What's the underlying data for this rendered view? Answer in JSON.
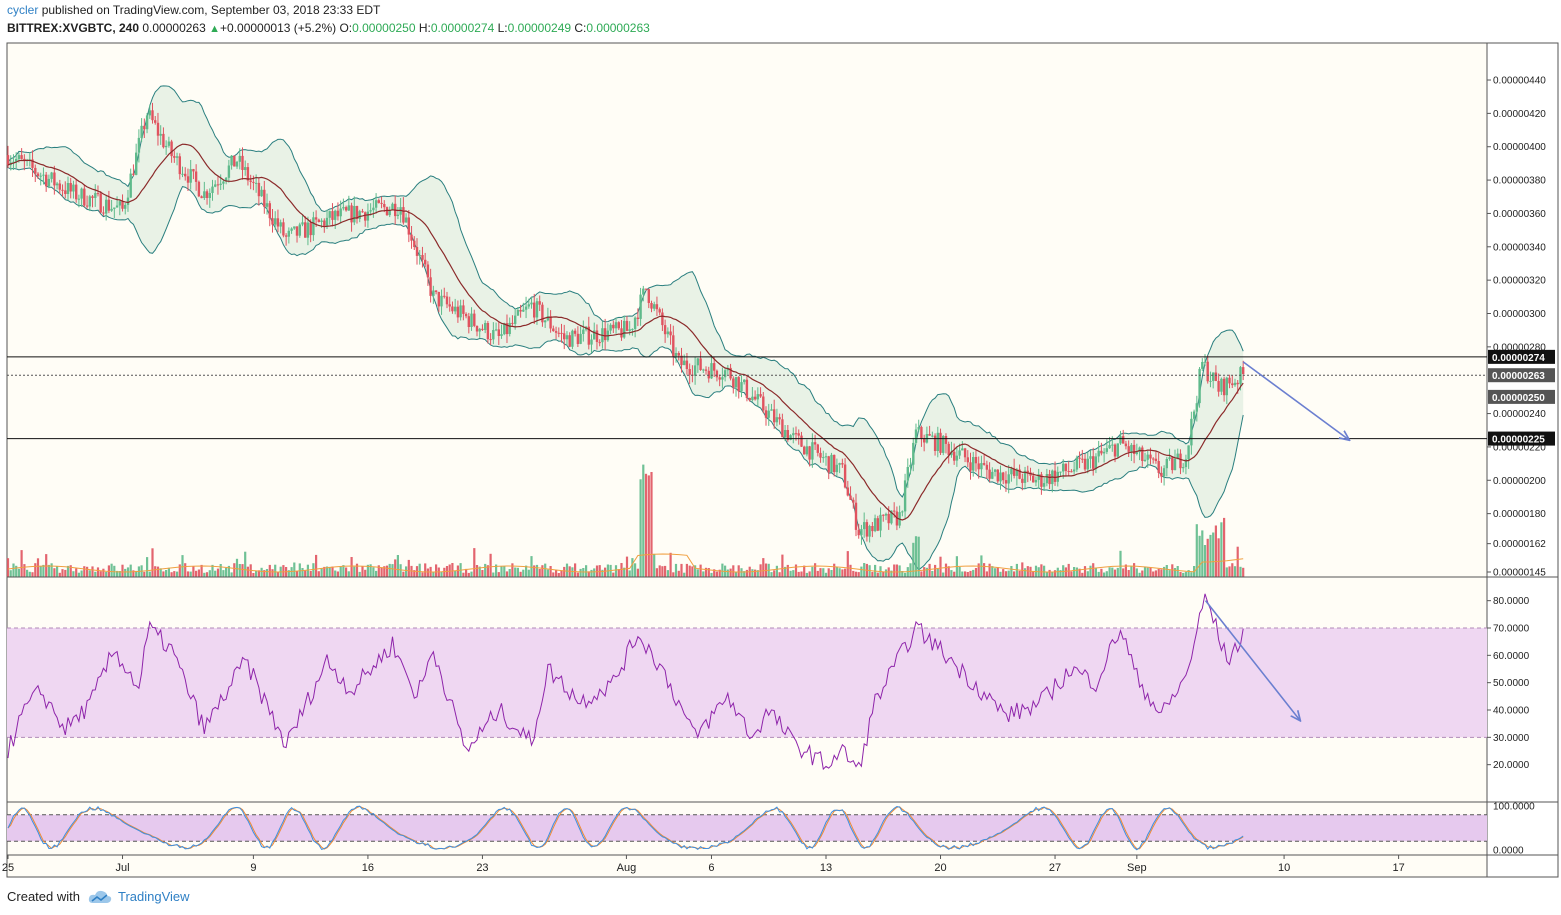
{
  "header": {
    "user": "cycler",
    "published_text": "published on TradingView.com, September 03, 2018 23:33 EDT",
    "symbol": "BITTREX:XVGBTC, 240",
    "last": "0.00000263",
    "change": "+0.00000013 (+5.2%)",
    "o_label": "O:",
    "o_val": "0.00000250",
    "h_label": "H:",
    "h_val": "0.00000274",
    "l_label": "L:",
    "l_val": "0.00000249",
    "c_label": "C:",
    "c_val": "0.00000263"
  },
  "footer": {
    "created": "Created with",
    "brand": "TradingView"
  },
  "colors": {
    "up": "#5fba8b",
    "down": "#e0535f",
    "bb_line": "#2a7f7f",
    "bb_fill": "#e9f2e6",
    "basis": "#8b2a2a",
    "rsi_line": "#8e24aa",
    "rsi_band": "#efd7f2",
    "stoch_k": "#3d8fe0",
    "stoch_d": "#ef8a35",
    "arrow": "#6b7fd0",
    "bg": "#fffdf6"
  },
  "chart_data": [
    {
      "type": "candlestick",
      "pair": "BITTREX:XVGBTC",
      "interval": "240",
      "indicators": [
        "Bollinger Bands",
        "Volume"
      ],
      "y_ticks": [
        "0.00000440",
        "0.00000420",
        "0.00000400",
        "0.00000380",
        "0.00000360",
        "0.00000340",
        "0.00000320",
        "0.00000300",
        "0.00000280",
        "0.00000240",
        "0.00000220",
        "0.00000200",
        "0.00000180",
        "0.00000162",
        "0.00000145"
      ],
      "ylim": [
        1.45e-06,
        4.55e-06
      ],
      "x_ticks": [
        "25",
        "Jul",
        "9",
        "16",
        "23",
        "Aug",
        "6",
        "13",
        "20",
        "27",
        "Sep",
        "10",
        "17"
      ],
      "price_path": [
        {
          "d": 0,
          "p": 3.95e-06
        },
        {
          "d": 4,
          "p": 3.72e-06
        },
        {
          "d": 7,
          "p": 3.62e-06
        },
        {
          "d": 8.5,
          "p": 4.2e-06
        },
        {
          "d": 10,
          "p": 3.95e-06
        },
        {
          "d": 12,
          "p": 3.72e-06
        },
        {
          "d": 14,
          "p": 3.92e-06
        },
        {
          "d": 17,
          "p": 3.45e-06
        },
        {
          "d": 20,
          "p": 3.58e-06
        },
        {
          "d": 24,
          "p": 3.65e-06
        },
        {
          "d": 26,
          "p": 3.1e-06
        },
        {
          "d": 30,
          "p": 2.85e-06
        },
        {
          "d": 32,
          "p": 3.05e-06
        },
        {
          "d": 34,
          "p": 2.85e-06
        },
        {
          "d": 38,
          "p": 2.9e-06
        },
        {
          "d": 39,
          "p": 3.15e-06
        },
        {
          "d": 41,
          "p": 2.7e-06
        },
        {
          "d": 44,
          "p": 2.65e-06
        },
        {
          "d": 48,
          "p": 2.25e-06
        },
        {
          "d": 51,
          "p": 2.05e-06
        },
        {
          "d": 52,
          "p": 1.7e-06
        },
        {
          "d": 54.5,
          "p": 1.78e-06
        },
        {
          "d": 55.5,
          "p": 2.28e-06
        },
        {
          "d": 57,
          "p": 2.22e-06
        },
        {
          "d": 60,
          "p": 2.05e-06
        },
        {
          "d": 63,
          "p": 2e-06
        },
        {
          "d": 66,
          "p": 2.1e-06
        },
        {
          "d": 68,
          "p": 2.22e-06
        },
        {
          "d": 70.5,
          "p": 2.05e-06
        },
        {
          "d": 72,
          "p": 2.15e-06
        },
        {
          "d": 73,
          "p": 2.7e-06
        },
        {
          "d": 74,
          "p": 2.55e-06
        },
        {
          "d": 75.5,
          "p": 2.63e-06
        }
      ],
      "horizontal_lines": [
        "0.00000274",
        "0.00000225"
      ],
      "last_price_line": "0.00000263",
      "price_labels": [
        "0.00000274",
        "0.00000263",
        "0.00000250",
        "0.00000225"
      ],
      "trend_arrow": {
        "from": {
          "d": 75.5,
          "p": 2.71e-06
        },
        "to": {
          "d": 82,
          "p": 2.24e-06
        }
      }
    },
    {
      "type": "line",
      "indicator": "RSI",
      "y_ticks": [
        "80.0000",
        "70.0000",
        "60.0000",
        "50.0000",
        "40.0000",
        "30.0000",
        "20.0000"
      ],
      "ylim": [
        10,
        85
      ],
      "overbought": 70,
      "oversold": 30,
      "path": [
        {
          "d": 0,
          "v": 25
        },
        {
          "d": 1,
          "v": 40
        },
        {
          "d": 2,
          "v": 47
        },
        {
          "d": 3.5,
          "v": 33
        },
        {
          "d": 5,
          "v": 42
        },
        {
          "d": 6.5,
          "v": 62
        },
        {
          "d": 8,
          "v": 48
        },
        {
          "d": 8.6,
          "v": 70
        },
        {
          "d": 10,
          "v": 62
        },
        {
          "d": 12,
          "v": 33
        },
        {
          "d": 14.5,
          "v": 58
        },
        {
          "d": 17,
          "v": 27
        },
        {
          "d": 19.5,
          "v": 58
        },
        {
          "d": 21,
          "v": 47
        },
        {
          "d": 23.5,
          "v": 64
        },
        {
          "d": 25,
          "v": 45
        },
        {
          "d": 26,
          "v": 62
        },
        {
          "d": 28,
          "v": 25
        },
        {
          "d": 30,
          "v": 40
        },
        {
          "d": 32,
          "v": 28
        },
        {
          "d": 33,
          "v": 55
        },
        {
          "d": 35,
          "v": 43
        },
        {
          "d": 37,
          "v": 50
        },
        {
          "d": 38.5,
          "v": 68
        },
        {
          "d": 40,
          "v": 55
        },
        {
          "d": 42,
          "v": 30
        },
        {
          "d": 44,
          "v": 45
        },
        {
          "d": 45.5,
          "v": 30
        },
        {
          "d": 46.5,
          "v": 40
        },
        {
          "d": 48,
          "v": 28
        },
        {
          "d": 50,
          "v": 20
        },
        {
          "d": 51,
          "v": 25
        },
        {
          "d": 52,
          "v": 18
        },
        {
          "d": 53,
          "v": 43
        },
        {
          "d": 55.5,
          "v": 70
        },
        {
          "d": 57,
          "v": 62
        },
        {
          "d": 59,
          "v": 50
        },
        {
          "d": 61,
          "v": 38
        },
        {
          "d": 63,
          "v": 42
        },
        {
          "d": 65,
          "v": 55
        },
        {
          "d": 66.5,
          "v": 50
        },
        {
          "d": 68,
          "v": 70
        },
        {
          "d": 69,
          "v": 52
        },
        {
          "d": 70.5,
          "v": 38
        },
        {
          "d": 72,
          "v": 52
        },
        {
          "d": 73.2,
          "v": 82
        },
        {
          "d": 74.5,
          "v": 58
        },
        {
          "d": 75.5,
          "v": 67
        }
      ],
      "trend_arrow": {
        "from": {
          "d": 73.2,
          "v": 80
        },
        "to": {
          "d": 79,
          "v": 36
        }
      }
    },
    {
      "type": "line",
      "indicator": "Stochastic RSI",
      "y_ticks": [
        "100.0000",
        "0.0000"
      ],
      "ylim": [
        0,
        100
      ],
      "upper_band": 80,
      "lower_band": 20,
      "series": [
        {
          "values": "K"
        },
        {
          "values": "D"
        }
      ]
    }
  ]
}
